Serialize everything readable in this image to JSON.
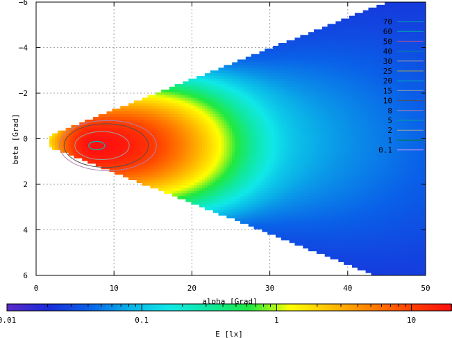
{
  "chart_data": {
    "type": "heatmap",
    "subtype": "contour-filled-2d",
    "xlabel": "alpha [Grad]",
    "ylabel": "beta [Grad]",
    "xlim": [
      0,
      50
    ],
    "ylim": [
      6,
      -6
    ],
    "y_axis_inverted": true,
    "x_ticks": [
      0,
      10,
      20,
      30,
      40,
      50
    ],
    "y_ticks": [
      -6,
      -4,
      -2,
      0,
      2,
      4,
      6
    ],
    "grid": true,
    "legend_position": "top-right",
    "contour_levels": [
      70,
      60,
      50,
      40,
      30,
      25,
      20,
      15,
      10,
      8,
      5,
      2,
      1,
      0.1
    ],
    "contour_legend_labels": [
      "70",
      "60",
      "50",
      "40",
      "30",
      "25",
      "20",
      "15",
      "10",
      "8",
      "5",
      "2",
      "1",
      "0.1"
    ],
    "contour_colors": [
      "#00a8a8",
      "#00a8a8",
      "#a050a0",
      "#009090",
      "#a0a0a0",
      "#a0a050",
      "#00b0b0",
      "#a0a0a0",
      "#505050",
      "#b080b0",
      "#00a0a0",
      "#a0a0a0",
      "#008000",
      "#ffa0ff"
    ],
    "field_peak": {
      "alpha": 7.5,
      "beta": 0.3
    },
    "colorbar": {
      "label": "E [lx]",
      "scale": "log",
      "range": [
        0.01,
        20
      ],
      "tick_labels": [
        "0.01",
        "0.1",
        "1",
        "10"
      ],
      "tick_values": [
        0.01,
        0.1,
        1,
        10
      ],
      "colormap": [
        "#5a2bc8",
        "#1a2bd8",
        "#0a60e8",
        "#0ab0e8",
        "#10e8e8",
        "#10e8a0",
        "#20e840",
        "#ffff00",
        "#ffc000",
        "#ff8000",
        "#ff4000",
        "#ff1010"
      ]
    }
  }
}
